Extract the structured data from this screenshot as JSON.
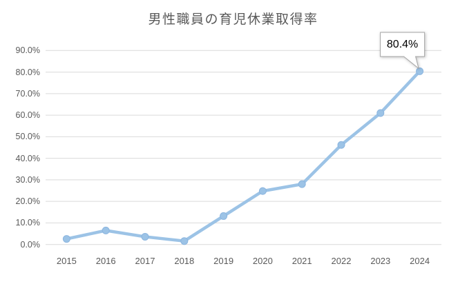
{
  "chart": {
    "title": "男性職員の育児休業取得率"
  },
  "chart_data": {
    "type": "line",
    "title": "男性職員の育児休業取得率",
    "categories": [
      "2015",
      "2016",
      "2017",
      "2018",
      "2019",
      "2020",
      "2021",
      "2022",
      "2023",
      "2024"
    ],
    "values": [
      2.6,
      6.5,
      3.6,
      1.6,
      13.2,
      24.8,
      28.0,
      46.2,
      61.0,
      80.4
    ],
    "xlabel": "",
    "ylabel": "",
    "ylim": [
      0,
      90
    ],
    "ytick_step": 10,
    "ytick_suffix": "%",
    "grid": true,
    "legend": "none",
    "annotations": [
      {
        "category": "2024",
        "text": "80.4%"
      }
    ],
    "colors": {
      "line": "#9CC3E6",
      "marker_fill": "#9CC3E6",
      "marker_stroke": "#8BB5DF",
      "gridline": "#D9D9D9",
      "title_text": "#595959",
      "tick_text": "#595959",
      "callout_border": "#A6A6A6",
      "callout_bg": "#FFFFFF",
      "callout_text": "#000000"
    }
  }
}
